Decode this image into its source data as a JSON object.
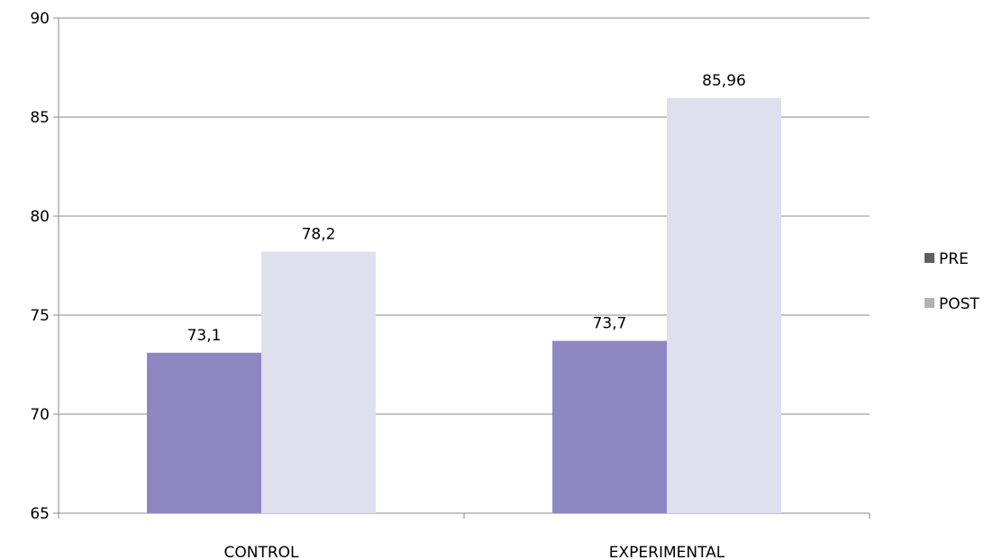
{
  "chart_data": {
    "type": "bar",
    "categories": [
      "CONTROL",
      "EXPERIMENTAL"
    ],
    "series": [
      {
        "name": "PRE",
        "values": [
          73.1,
          73.7
        ],
        "labels": [
          "73,1",
          "73,7"
        ],
        "color": "#8f87c2"
      },
      {
        "name": "POST",
        "values": [
          78.2,
          85.96
        ],
        "labels": [
          "78,2",
          "85,96"
        ],
        "color": "#dfdfee"
      }
    ],
    "yticks": [
      65,
      70,
      75,
      80,
      85,
      90
    ],
    "ylim": [
      65,
      90
    ],
    "grid": true,
    "legend": "right",
    "legend_colors": [
      "#5f5f5f",
      "#b3b3b3"
    ]
  }
}
